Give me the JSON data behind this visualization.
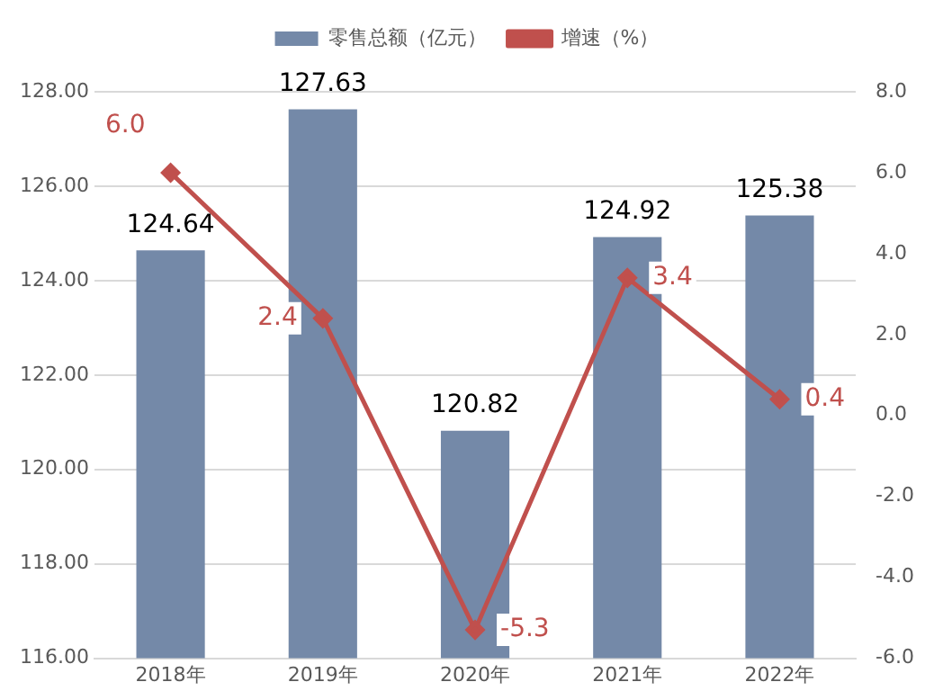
{
  "chart_data": {
    "type": "bar",
    "categories": [
      "2018年",
      "2019年",
      "2020年",
      "2021年",
      "2022年"
    ],
    "series": [
      {
        "name": "零售总额（亿元）",
        "color": "#7489a8",
        "values": [
          124.64,
          127.63,
          120.82,
          124.92,
          125.38
        ],
        "value_labels": [
          "124.64",
          "127.63",
          "120.82",
          "124.92",
          "125.38"
        ]
      },
      {
        "name": "增速（%）",
        "type": "line",
        "axis": "y2",
        "color": "#c0504d",
        "values": [
          6.0,
          2.4,
          -5.3,
          3.4,
          0.4
        ],
        "value_labels": [
          "6.0",
          "2.4",
          "-5.3",
          "3.4",
          "0.4"
        ]
      }
    ],
    "ylim": [
      116,
      128
    ],
    "yticks": [
      {
        "value": 116,
        "label": "116.00"
      },
      {
        "value": 118,
        "label": "118.00"
      },
      {
        "value": 120,
        "label": "120.00"
      },
      {
        "value": 122,
        "label": "122.00"
      },
      {
        "value": 124,
        "label": "124.00"
      },
      {
        "value": 126,
        "label": "126.00"
      },
      {
        "value": 128,
        "label": "128.00"
      }
    ],
    "y2lim": [
      -6,
      8
    ],
    "y2ticks": [
      {
        "value": -6,
        "label": "-6.0"
      },
      {
        "value": -4,
        "label": "-4.0"
      },
      {
        "value": -2,
        "label": "-2.0"
      },
      {
        "value": 0,
        "label": "0.0"
      },
      {
        "value": 2,
        "label": "2.0"
      },
      {
        "value": 4,
        "label": "4.0"
      },
      {
        "value": 6,
        "label": "6.0"
      },
      {
        "value": 8,
        "label": "8.0"
      }
    ],
    "grid": "y",
    "legend": "top",
    "marker": "diamond",
    "line_style": "solid"
  }
}
